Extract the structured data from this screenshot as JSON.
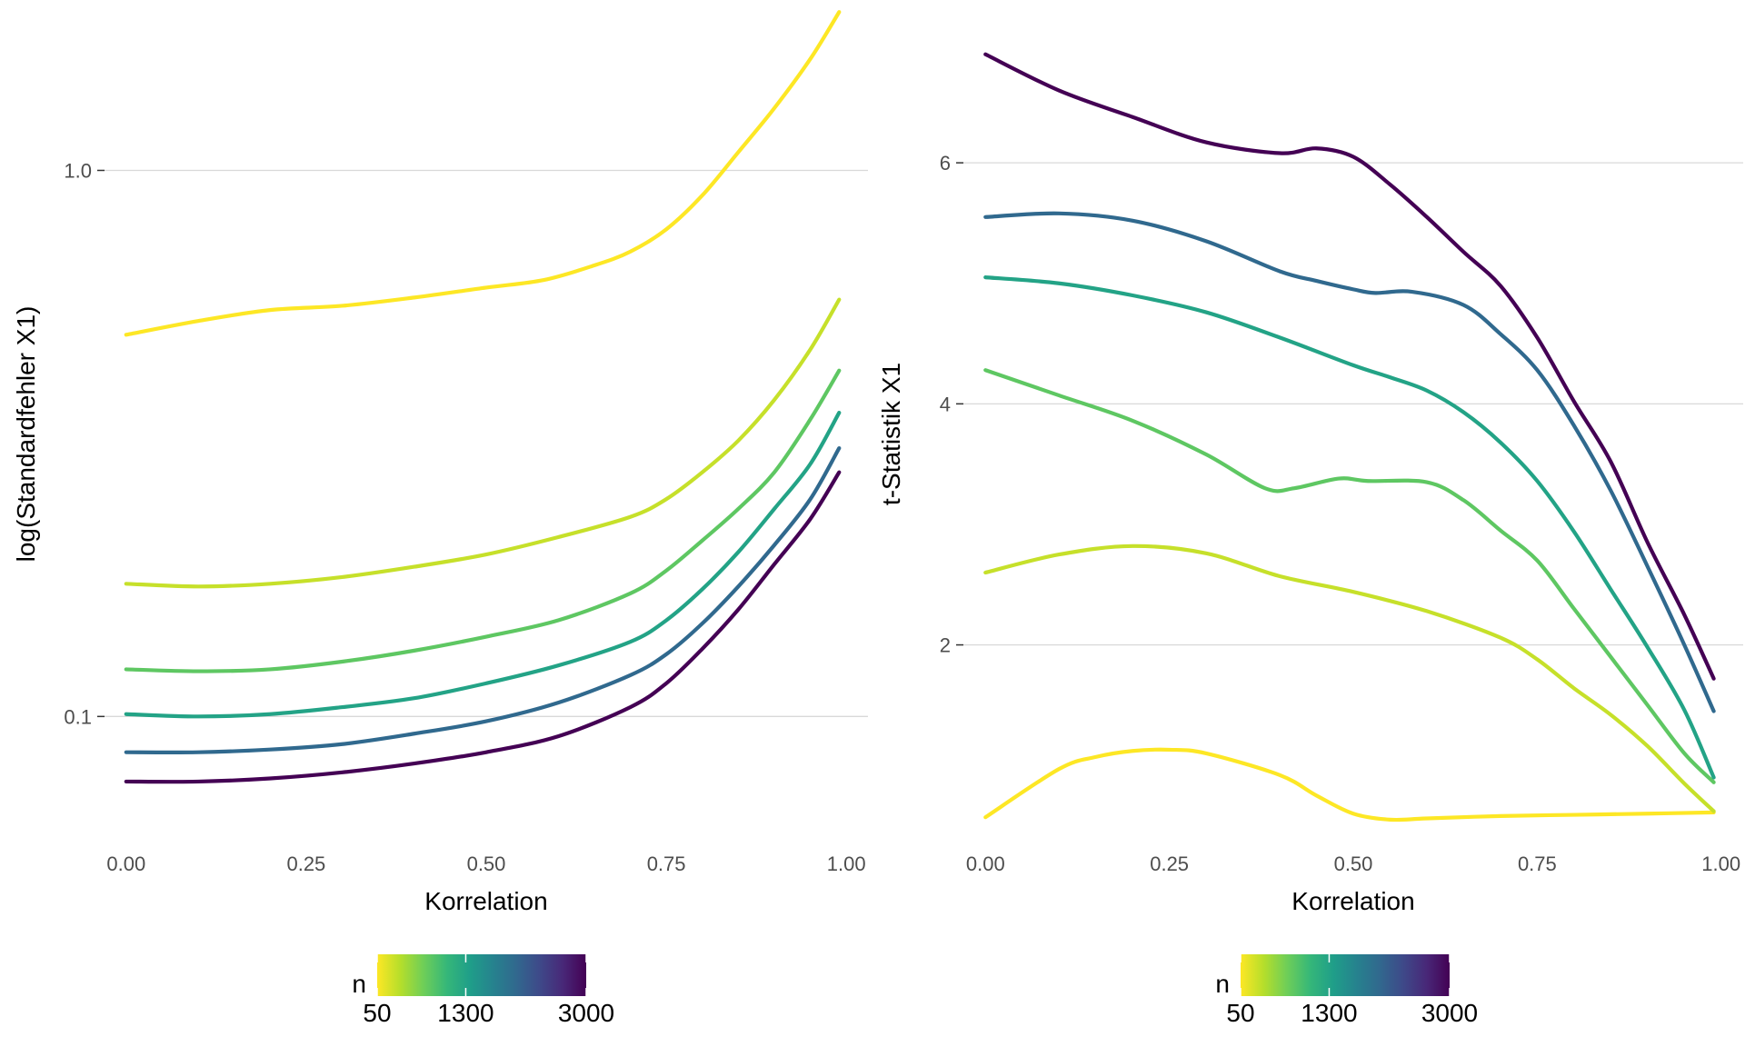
{
  "colors": {
    "viridis": [
      "#FDE725",
      "#B5DE2B",
      "#6ECE58",
      "#35B779",
      "#1F9E89",
      "#26828E",
      "#31688E",
      "#3E4989",
      "#482878",
      "#440154"
    ]
  },
  "chart_data": [
    {
      "type": "line",
      "xlabel": "Korrelation",
      "ylabel": "log(Standardfehler X1)",
      "y_scale": "log10",
      "xlim": [
        -0.03,
        1.03
      ],
      "ylim": [
        0.057,
        1.9
      ],
      "x_ticks": [
        0,
        0.25,
        0.5,
        0.75,
        1
      ],
      "x_tick_labels": [
        "0.00",
        "0.25",
        "0.50",
        "0.75",
        "1.00"
      ],
      "y_ticks": [
        0.1,
        1.0
      ],
      "y_tick_labels": [
        "0.1",
        "1.0"
      ],
      "grid": "horizontal major",
      "legend": {
        "title": "n",
        "type": "colorbar",
        "placement": "bottom",
        "min": 50,
        "max": 3000,
        "ticks": [
          50,
          1300,
          3000
        ],
        "tick_labels": [
          "50",
          "1300",
          "3000"
        ]
      },
      "series": [
        {
          "n": 50,
          "points": [
            [
              0.0,
              0.5
            ],
            [
              0.1,
              0.53
            ],
            [
              0.2,
              0.555
            ],
            [
              0.3,
              0.565
            ],
            [
              0.4,
              0.585
            ],
            [
              0.5,
              0.61
            ],
            [
              0.58,
              0.63
            ],
            [
              0.65,
              0.67
            ],
            [
              0.7,
              0.71
            ],
            [
              0.75,
              0.78
            ],
            [
              0.8,
              0.9
            ],
            [
              0.85,
              1.08
            ],
            [
              0.9,
              1.3
            ],
            [
              0.95,
              1.6
            ],
            [
              0.99,
              1.95
            ]
          ]
        },
        {
          "n": 300,
          "points": [
            [
              0.0,
              0.175
            ],
            [
              0.1,
              0.173
            ],
            [
              0.2,
              0.175
            ],
            [
              0.3,
              0.18
            ],
            [
              0.4,
              0.188
            ],
            [
              0.5,
              0.198
            ],
            [
              0.6,
              0.213
            ],
            [
              0.7,
              0.232
            ],
            [
              0.75,
              0.25
            ],
            [
              0.8,
              0.28
            ],
            [
              0.85,
              0.32
            ],
            [
              0.9,
              0.38
            ],
            [
              0.95,
              0.47
            ],
            [
              0.99,
              0.58
            ]
          ]
        },
        {
          "n": 800,
          "points": [
            [
              0.0,
              0.122
            ],
            [
              0.1,
              0.121
            ],
            [
              0.2,
              0.122
            ],
            [
              0.3,
              0.126
            ],
            [
              0.4,
              0.132
            ],
            [
              0.5,
              0.14
            ],
            [
              0.6,
              0.15
            ],
            [
              0.7,
              0.168
            ],
            [
              0.75,
              0.185
            ],
            [
              0.8,
              0.21
            ],
            [
              0.85,
              0.24
            ],
            [
              0.9,
              0.28
            ],
            [
              0.95,
              0.35
            ],
            [
              0.99,
              0.43
            ]
          ]
        },
        {
          "n": 1300,
          "points": [
            [
              0.0,
              0.101
            ],
            [
              0.1,
              0.1
            ],
            [
              0.2,
              0.101
            ],
            [
              0.3,
              0.104
            ],
            [
              0.4,
              0.108
            ],
            [
              0.5,
              0.115
            ],
            [
              0.6,
              0.124
            ],
            [
              0.7,
              0.137
            ],
            [
              0.75,
              0.15
            ],
            [
              0.8,
              0.171
            ],
            [
              0.85,
              0.2
            ],
            [
              0.9,
              0.24
            ],
            [
              0.95,
              0.29
            ],
            [
              0.99,
              0.36
            ]
          ]
        },
        {
          "n": 2000,
          "points": [
            [
              0.0,
              0.086
            ],
            [
              0.1,
              0.086
            ],
            [
              0.2,
              0.087
            ],
            [
              0.3,
              0.089
            ],
            [
              0.4,
              0.093
            ],
            [
              0.5,
              0.098
            ],
            [
              0.6,
              0.106
            ],
            [
              0.7,
              0.119
            ],
            [
              0.75,
              0.13
            ],
            [
              0.8,
              0.148
            ],
            [
              0.85,
              0.173
            ],
            [
              0.9,
              0.206
            ],
            [
              0.95,
              0.25
            ],
            [
              0.99,
              0.31
            ]
          ]
        },
        {
          "n": 3000,
          "points": [
            [
              0.0,
              0.076
            ],
            [
              0.1,
              0.076
            ],
            [
              0.2,
              0.077
            ],
            [
              0.3,
              0.079
            ],
            [
              0.4,
              0.082
            ],
            [
              0.5,
              0.086
            ],
            [
              0.6,
              0.092
            ],
            [
              0.7,
              0.104
            ],
            [
              0.75,
              0.115
            ],
            [
              0.8,
              0.133
            ],
            [
              0.85,
              0.157
            ],
            [
              0.9,
              0.19
            ],
            [
              0.95,
              0.23
            ],
            [
              0.99,
              0.28
            ]
          ]
        }
      ]
    },
    {
      "type": "line",
      "xlabel": "Korrelation",
      "ylabel": "t-Statistik X1",
      "xlim": [
        -0.03,
        1.03
      ],
      "ylim": [
        0.3,
        7.2
      ],
      "x_ticks": [
        0,
        0.25,
        0.5,
        0.75,
        1
      ],
      "x_tick_labels": [
        "0.00",
        "0.25",
        "0.50",
        "0.75",
        "1.00"
      ],
      "y_ticks": [
        2,
        4,
        6
      ],
      "y_tick_labels": [
        "2",
        "4",
        "6"
      ],
      "grid": "horizontal major",
      "legend": {
        "title": "n",
        "type": "colorbar",
        "placement": "bottom",
        "min": 50,
        "max": 3000,
        "ticks": [
          50,
          1300,
          3000
        ],
        "tick_labels": [
          "50",
          "1300",
          "3000"
        ]
      },
      "series": [
        {
          "n": 50,
          "points": [
            [
              0.0,
              0.57
            ],
            [
              0.1,
              0.97
            ],
            [
              0.15,
              1.07
            ],
            [
              0.2,
              1.12
            ],
            [
              0.25,
              1.13
            ],
            [
              0.3,
              1.1
            ],
            [
              0.4,
              0.92
            ],
            [
              0.45,
              0.75
            ],
            [
              0.5,
              0.6
            ],
            [
              0.55,
              0.55
            ],
            [
              0.6,
              0.56
            ],
            [
              0.7,
              0.58
            ],
            [
              0.8,
              0.59
            ],
            [
              0.9,
              0.6
            ],
            [
              0.99,
              0.61
            ]
          ]
        },
        {
          "n": 300,
          "points": [
            [
              0.0,
              2.6
            ],
            [
              0.1,
              2.75
            ],
            [
              0.2,
              2.82
            ],
            [
              0.3,
              2.76
            ],
            [
              0.4,
              2.57
            ],
            [
              0.5,
              2.44
            ],
            [
              0.6,
              2.28
            ],
            [
              0.7,
              2.06
            ],
            [
              0.75,
              1.88
            ],
            [
              0.8,
              1.64
            ],
            [
              0.85,
              1.42
            ],
            [
              0.9,
              1.16
            ],
            [
              0.95,
              0.85
            ],
            [
              0.99,
              0.62
            ]
          ]
        },
        {
          "n": 800,
          "points": [
            [
              0.0,
              4.28
            ],
            [
              0.1,
              4.07
            ],
            [
              0.2,
              3.86
            ],
            [
              0.3,
              3.58
            ],
            [
              0.38,
              3.3
            ],
            [
              0.42,
              3.3
            ],
            [
              0.48,
              3.38
            ],
            [
              0.52,
              3.36
            ],
            [
              0.6,
              3.35
            ],
            [
              0.65,
              3.2
            ],
            [
              0.7,
              2.95
            ],
            [
              0.75,
              2.7
            ],
            [
              0.8,
              2.3
            ],
            [
              0.85,
              1.9
            ],
            [
              0.9,
              1.5
            ],
            [
              0.95,
              1.1
            ],
            [
              0.99,
              0.86
            ]
          ]
        },
        {
          "n": 1300,
          "points": [
            [
              0.0,
              5.05
            ],
            [
              0.1,
              5.0
            ],
            [
              0.2,
              4.9
            ],
            [
              0.3,
              4.76
            ],
            [
              0.4,
              4.55
            ],
            [
              0.5,
              4.32
            ],
            [
              0.55,
              4.22
            ],
            [
              0.6,
              4.11
            ],
            [
              0.65,
              3.93
            ],
            [
              0.7,
              3.68
            ],
            [
              0.75,
              3.36
            ],
            [
              0.8,
              2.94
            ],
            [
              0.85,
              2.46
            ],
            [
              0.9,
              1.98
            ],
            [
              0.95,
              1.46
            ],
            [
              0.99,
              0.9
            ]
          ]
        },
        {
          "n": 2000,
          "points": [
            [
              0.0,
              5.55
            ],
            [
              0.1,
              5.58
            ],
            [
              0.2,
              5.52
            ],
            [
              0.3,
              5.35
            ],
            [
              0.4,
              5.1
            ],
            [
              0.45,
              5.02
            ],
            [
              0.5,
              4.95
            ],
            [
              0.53,
              4.92
            ],
            [
              0.58,
              4.93
            ],
            [
              0.65,
              4.82
            ],
            [
              0.7,
              4.58
            ],
            [
              0.75,
              4.28
            ],
            [
              0.8,
              3.82
            ],
            [
              0.85,
              3.28
            ],
            [
              0.9,
              2.65
            ],
            [
              0.95,
              2.0
            ],
            [
              0.99,
              1.45
            ]
          ]
        },
        {
          "n": 3000,
          "points": [
            [
              0.0,
              6.9
            ],
            [
              0.1,
              6.6
            ],
            [
              0.2,
              6.38
            ],
            [
              0.3,
              6.17
            ],
            [
              0.4,
              6.08
            ],
            [
              0.45,
              6.12
            ],
            [
              0.5,
              6.05
            ],
            [
              0.55,
              5.82
            ],
            [
              0.6,
              5.55
            ],
            [
              0.65,
              5.26
            ],
            [
              0.7,
              4.98
            ],
            [
              0.75,
              4.55
            ],
            [
              0.8,
              4.02
            ],
            [
              0.85,
              3.52
            ],
            [
              0.9,
              2.85
            ],
            [
              0.95,
              2.25
            ],
            [
              0.99,
              1.72
            ]
          ]
        }
      ]
    }
  ]
}
